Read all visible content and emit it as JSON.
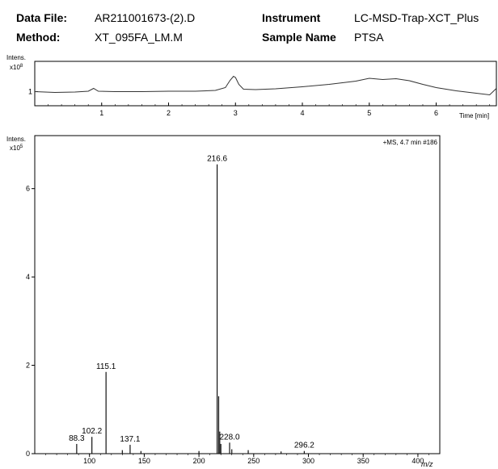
{
  "header": {
    "data_file_label": "Data File:",
    "data_file_value": "AR211001673-(2).D",
    "instrument_label": "Instrument",
    "instrument_value": "LC-MSD-Trap-XCT_Plus",
    "method_label": "Method:",
    "method_value": "XT_095FA_LM.M",
    "sample_label": "Sample Name",
    "sample_value": "PTSA"
  },
  "chart_data": [
    {
      "type": "line",
      "ylabel": "Intens.",
      "y_exponent": "x10",
      "y_exponent_power": "8",
      "xlabel": "Time [min]",
      "xlim": [
        0,
        6.9
      ],
      "ylim": [
        0.65,
        1.75
      ],
      "xticks": [
        1,
        2,
        3,
        4,
        5,
        6
      ],
      "yticks": [
        1
      ],
      "x": [
        0.0,
        0.3,
        0.6,
        0.8,
        0.88,
        0.95,
        1.2,
        1.6,
        2.0,
        2.4,
        2.7,
        2.85,
        2.92,
        2.97,
        3.0,
        3.05,
        3.12,
        3.3,
        3.6,
        4.0,
        4.4,
        4.8,
        5.0,
        5.2,
        5.4,
        5.6,
        5.8,
        6.0,
        6.3,
        6.6,
        6.8,
        6.9
      ],
      "y": [
        1.0,
        0.98,
        0.99,
        1.01,
        1.08,
        1.01,
        1.0,
        1.0,
        1.01,
        1.01,
        1.03,
        1.1,
        1.28,
        1.38,
        1.35,
        1.18,
        1.06,
        1.05,
        1.07,
        1.12,
        1.18,
        1.26,
        1.33,
        1.3,
        1.32,
        1.27,
        1.18,
        1.1,
        1.02,
        0.96,
        0.92,
        1.08
      ]
    },
    {
      "type": "bar",
      "ylabel": "Intens.",
      "y_exponent": "x10",
      "y_exponent_power": "5",
      "xlabel": "m/z",
      "annotation": "+MS, 4.7 min #186",
      "xlim": [
        50,
        420
      ],
      "ylim": [
        0,
        7.2
      ],
      "xticks": [
        100,
        150,
        200,
        250,
        300,
        350,
        400
      ],
      "yticks": [
        0,
        2,
        4,
        6
      ],
      "x": [
        88.3,
        102.2,
        115.1,
        130,
        137.1,
        147,
        200,
        216.6,
        218,
        219,
        220,
        228.0,
        230,
        245,
        275,
        296.2
      ],
      "y": [
        0.22,
        0.38,
        1.85,
        0.08,
        0.2,
        0.06,
        0.06,
        6.55,
        1.3,
        0.5,
        0.22,
        0.25,
        0.1,
        0.08,
        0.05,
        0.06
      ],
      "labeled_peaks": [
        {
          "x": 88.3,
          "label": "88.3"
        },
        {
          "x": 102.2,
          "label": "102.2"
        },
        {
          "x": 115.1,
          "label": "115.1"
        },
        {
          "x": 137.1,
          "label": "137.1"
        },
        {
          "x": 216.6,
          "label": "216.6"
        },
        {
          "x": 228.0,
          "label": "228.0"
        },
        {
          "x": 296.2,
          "label": "296.2"
        }
      ]
    }
  ]
}
